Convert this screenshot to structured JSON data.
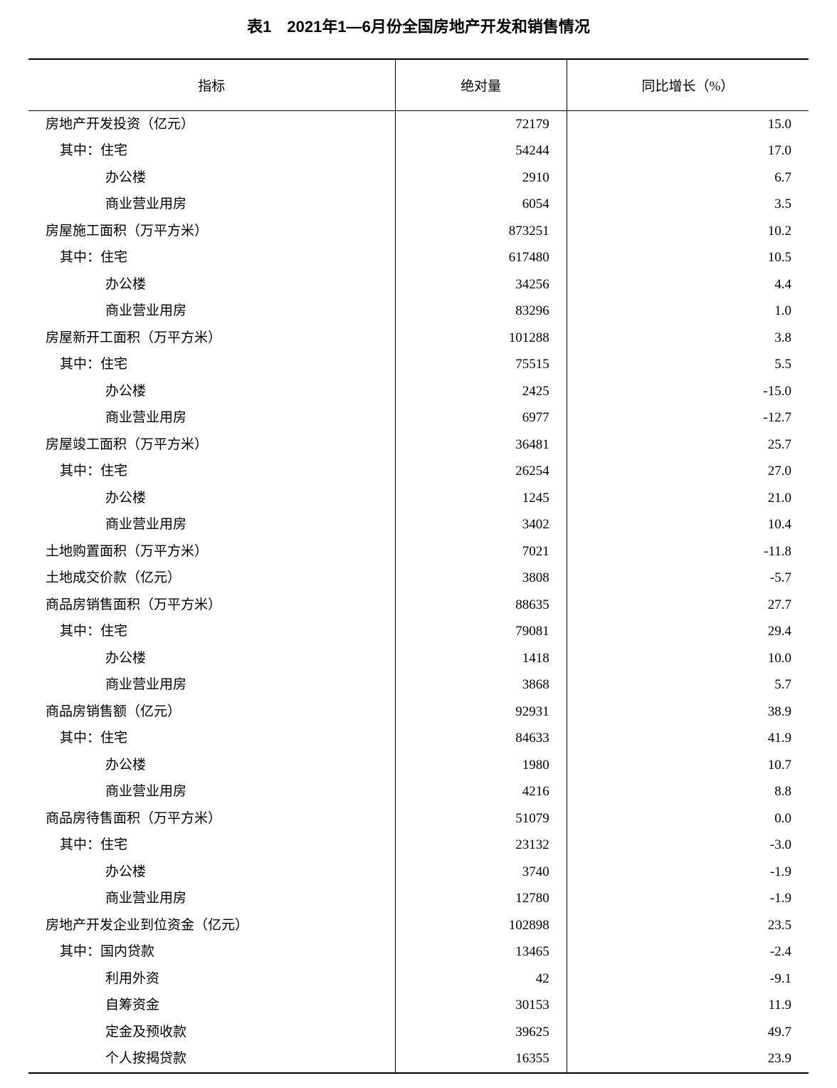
{
  "title": "表1　2021年1—6月份全国房地产开发和销售情况",
  "columns": {
    "indicator": "指标",
    "absolute": "绝对量",
    "growth": "同比增长（%）"
  },
  "rows": [
    {
      "label": "房地产开发投资（亿元）",
      "indent": 0,
      "abs": "72179",
      "growth": "15.0"
    },
    {
      "label": "其中：住宅",
      "indent": 1,
      "abs": "54244",
      "growth": "17.0"
    },
    {
      "label": "办公楼",
      "indent": 2,
      "abs": "2910",
      "growth": "6.7"
    },
    {
      "label": "商业营业用房",
      "indent": 2,
      "abs": "6054",
      "growth": "3.5"
    },
    {
      "label": "房屋施工面积（万平方米）",
      "indent": 0,
      "abs": "873251",
      "growth": "10.2"
    },
    {
      "label": "其中：住宅",
      "indent": 1,
      "abs": "617480",
      "growth": "10.5"
    },
    {
      "label": "办公楼",
      "indent": 2,
      "abs": "34256",
      "growth": "4.4"
    },
    {
      "label": "商业营业用房",
      "indent": 2,
      "abs": "83296",
      "growth": "1.0"
    },
    {
      "label": "房屋新开工面积（万平方米）",
      "indent": 0,
      "abs": "101288",
      "growth": "3.8"
    },
    {
      "label": "其中：住宅",
      "indent": 1,
      "abs": "75515",
      "growth": "5.5"
    },
    {
      "label": "办公楼",
      "indent": 2,
      "abs": "2425",
      "growth": "-15.0"
    },
    {
      "label": "商业营业用房",
      "indent": 2,
      "abs": "6977",
      "growth": "-12.7"
    },
    {
      "label": "房屋竣工面积（万平方米）",
      "indent": 0,
      "abs": "36481",
      "growth": "25.7"
    },
    {
      "label": "其中：住宅",
      "indent": 1,
      "abs": "26254",
      "growth": "27.0"
    },
    {
      "label": "办公楼",
      "indent": 2,
      "abs": "1245",
      "growth": "21.0"
    },
    {
      "label": "商业营业用房",
      "indent": 2,
      "abs": "3402",
      "growth": "10.4"
    },
    {
      "label": "土地购置面积（万平方米）",
      "indent": 0,
      "abs": "7021",
      "growth": "-11.8"
    },
    {
      "label": "土地成交价款（亿元）",
      "indent": 0,
      "abs": "3808",
      "growth": "-5.7"
    },
    {
      "label": "商品房销售面积（万平方米）",
      "indent": 0,
      "abs": "88635",
      "growth": "27.7"
    },
    {
      "label": "其中：住宅",
      "indent": 1,
      "abs": "79081",
      "growth": "29.4"
    },
    {
      "label": "办公楼",
      "indent": 2,
      "abs": "1418",
      "growth": "10.0"
    },
    {
      "label": "商业营业用房",
      "indent": 2,
      "abs": "3868",
      "growth": "5.7"
    },
    {
      "label": "商品房销售额（亿元）",
      "indent": 0,
      "abs": "92931",
      "growth": "38.9"
    },
    {
      "label": "其中：住宅",
      "indent": 1,
      "abs": "84633",
      "growth": "41.9"
    },
    {
      "label": "办公楼",
      "indent": 2,
      "abs": "1980",
      "growth": "10.7"
    },
    {
      "label": "商业营业用房",
      "indent": 2,
      "abs": "4216",
      "growth": "8.8"
    },
    {
      "label": "商品房待售面积（万平方米）",
      "indent": 0,
      "abs": "51079",
      "growth": "0.0"
    },
    {
      "label": "其中：住宅",
      "indent": 1,
      "abs": "23132",
      "growth": "-3.0"
    },
    {
      "label": "办公楼",
      "indent": 2,
      "abs": "3740",
      "growth": "-1.9"
    },
    {
      "label": "商业营业用房",
      "indent": 2,
      "abs": "12780",
      "growth": "-1.9"
    },
    {
      "label": "房地产开发企业到位资金（亿元）",
      "indent": 0,
      "abs": "102898",
      "growth": "23.5"
    },
    {
      "label": "其中：国内贷款",
      "indent": 1,
      "abs": "13465",
      "growth": "-2.4"
    },
    {
      "label": "利用外资",
      "indent": 2,
      "abs": "42",
      "growth": "-9.1"
    },
    {
      "label": "自筹资金",
      "indent": 2,
      "abs": "30153",
      "growth": "11.9"
    },
    {
      "label": "定金及预收款",
      "indent": 2,
      "abs": "39625",
      "growth": "49.7"
    },
    {
      "label": "个人按揭贷款",
      "indent": 2,
      "abs": "16355",
      "growth": "23.9"
    }
  ]
}
